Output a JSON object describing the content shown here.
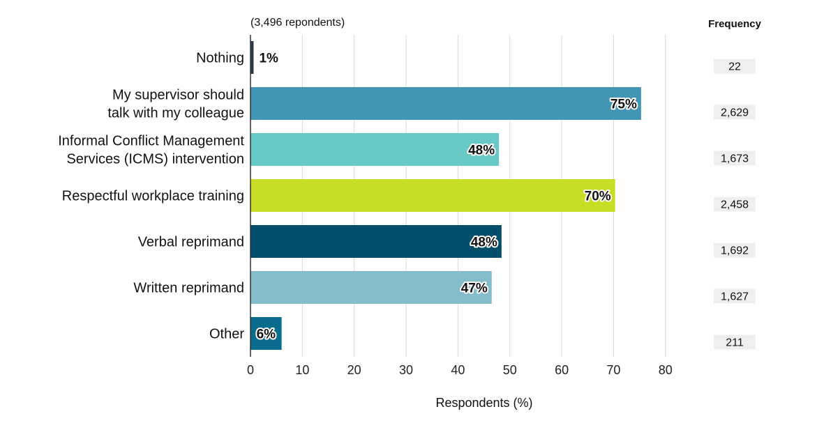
{
  "chart_data": {
    "type": "bar",
    "orientation": "horizontal",
    "note": "(3,496 repondents)",
    "xlabel": "Respondents (%)",
    "xlim": [
      0,
      80
    ],
    "xticks": [
      "0",
      "10",
      "20",
      "30",
      "40",
      "50",
      "60",
      "70",
      "80"
    ],
    "grid": true,
    "categories": [
      "Nothing",
      "My supervisor should talk with my colleague",
      "Informal Conflict Management Services (ICMS) intervention",
      "Respectful workplace training",
      "Verbal reprimand",
      "Written reprimand",
      "Other"
    ],
    "category_lines": [
      [
        "Nothing"
      ],
      [
        "My supervisor should",
        "talk with my colleague"
      ],
      [
        "Informal Conflict Management",
        "Services (ICMS) intervention"
      ],
      [
        "Respectful workplace training"
      ],
      [
        "Verbal reprimand"
      ],
      [
        "Written reprimand"
      ],
      [
        "Other"
      ]
    ],
    "values": [
      0.6,
      75.3,
      47.9,
      70.3,
      48.4,
      46.5,
      6.0
    ],
    "data_labels": [
      "1%",
      "75%",
      "48%",
      "70%",
      "48%",
      "47%",
      "6%"
    ],
    "colors": [
      "#2b3a4a",
      "#4196b4",
      "#69c9c7",
      "#c9dc26",
      "#034e6b",
      "#83bdcb",
      "#0b6d8d"
    ],
    "frequency_header": "Frequency",
    "frequency": [
      "22",
      "2,629",
      "1,673",
      "2,458",
      "1,692",
      "1,627",
      "211"
    ]
  }
}
